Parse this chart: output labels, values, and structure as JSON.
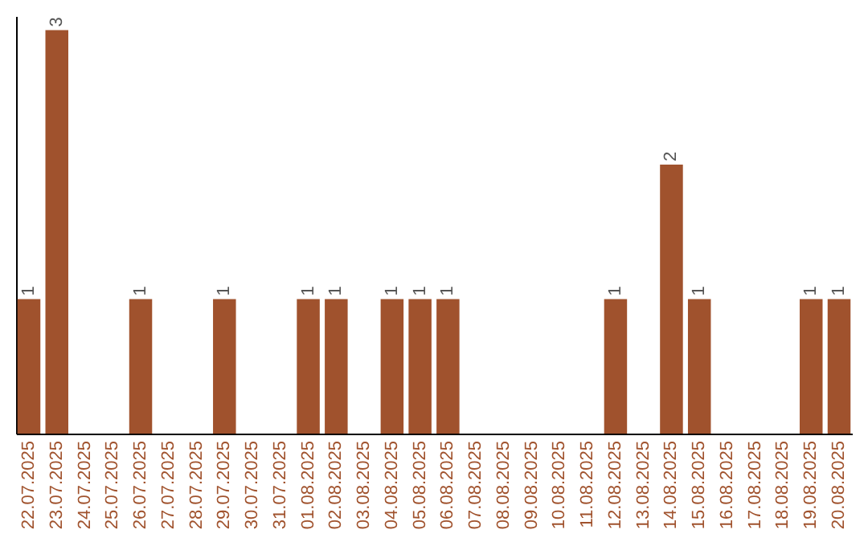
{
  "chart_data": {
    "type": "bar",
    "categories": [
      "22.07.2025",
      "23.07.2025",
      "24.07.2025",
      "25.07.2025",
      "26.07.2025",
      "27.07.2025",
      "28.07.2025",
      "29.07.2025",
      "30.07.2025",
      "31.07.2025",
      "01.08.2025",
      "02.08.2025",
      "03.08.2025",
      "04.08.2025",
      "05.08.2025",
      "06.08.2025",
      "07.08.2025",
      "08.08.2025",
      "09.08.2025",
      "10.08.2025",
      "11.08.2025",
      "12.08.2025",
      "13.08.2025",
      "14.08.2025",
      "15.08.2025",
      "16.08.2025",
      "17.08.2025",
      "18.08.2025",
      "19.08.2025",
      "20.08.2025"
    ],
    "values": [
      1,
      3,
      0,
      0,
      1,
      0,
      0,
      1,
      0,
      0,
      1,
      1,
      0,
      1,
      1,
      1,
      0,
      0,
      0,
      0,
      0,
      1,
      0,
      2,
      1,
      0,
      0,
      0,
      1,
      1
    ],
    "value_labels": [
      "1",
      "3",
      null,
      null,
      "1",
      null,
      null,
      "1",
      null,
      null,
      "1",
      "1",
      null,
      "1",
      "1",
      "1",
      null,
      null,
      null,
      null,
      null,
      "1",
      null,
      "2",
      "1",
      null,
      null,
      null,
      "1",
      "1"
    ],
    "color": "#a0522d",
    "grid": false,
    "tick_labels": "x"
  }
}
